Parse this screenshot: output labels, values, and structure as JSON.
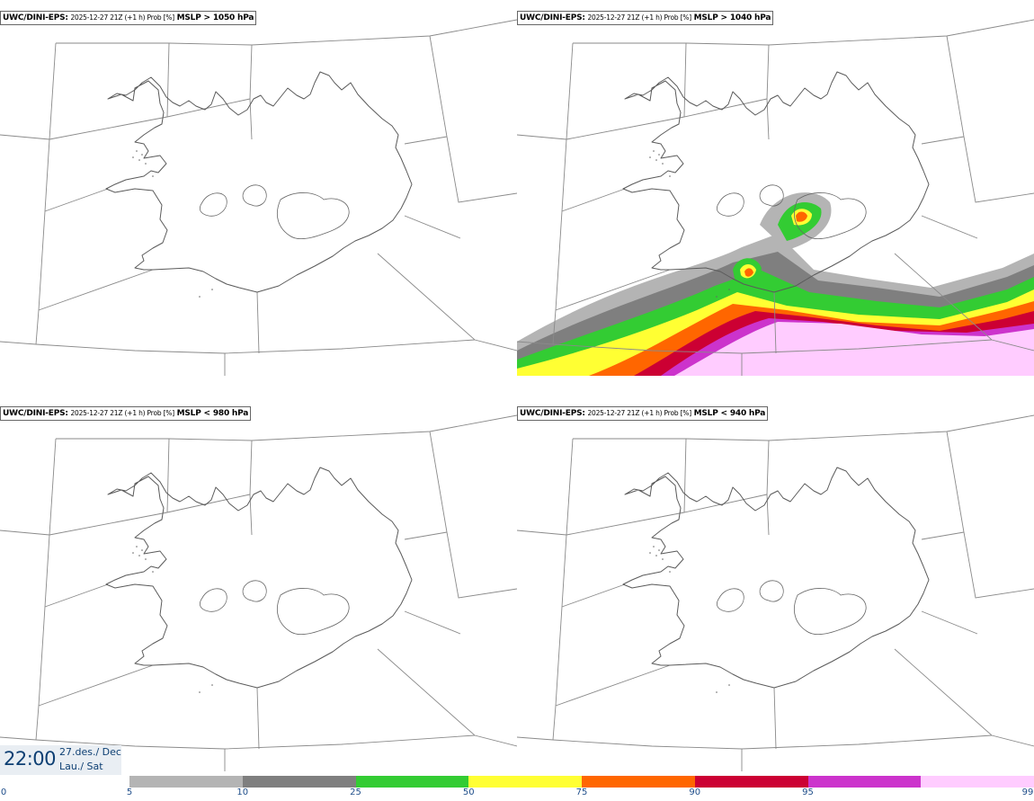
{
  "panels": [
    {
      "model": "UWC/DINI-EPS:",
      "meta": "2025-12-27 21Z (+1 h) Prob [%]",
      "threshold": "MSLP > 1050 hPa",
      "shaded": false
    },
    {
      "model": "UWC/DINI-EPS:",
      "meta": "2025-12-27 21Z (+1 h) Prob [%]",
      "threshold": "MSLP > 1040 hPa",
      "shaded": true
    },
    {
      "model": "UWC/DINI-EPS:",
      "meta": "2025-12-27 21Z (+1 h) Prob [%]",
      "threshold": "MSLP < 980 hPa",
      "shaded": false
    },
    {
      "model": "UWC/DINI-EPS:",
      "meta": "2025-12-27 21Z (+1 h) Prob [%]",
      "threshold": "MSLP < 940 hPa",
      "shaded": false
    }
  ],
  "timestamp": {
    "time": "22:00",
    "date_line1": "27.des./ Dec",
    "date_line2": "Lau./ Sat"
  },
  "legend": {
    "ticks": [
      "0",
      "5",
      "10",
      "25",
      "50",
      "75",
      "90",
      "95",
      "99"
    ],
    "colors": [
      "#ffffff",
      "#b4b4b4",
      "#7f7f7f",
      "#33cc33",
      "#ffff33",
      "#ff6600",
      "#cc0033",
      "#cc33cc",
      "#ffccff"
    ]
  }
}
